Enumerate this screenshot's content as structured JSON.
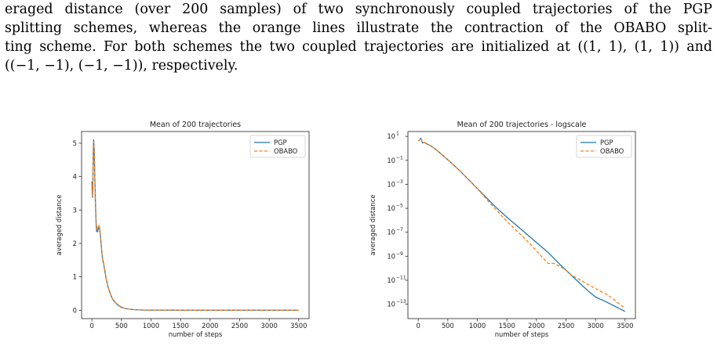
{
  "caption": {
    "lines": [
      "eraged distance (over 200 samples) of two synchronously coupled trajectories of the PGP",
      "splitting schemes, whereas the orange lines illustrate the contraction of the OBABO split-",
      "ting scheme. For both schemes the two coupled trajectories are initialized at ((1, 1), (1, 1)) and",
      "((−1, −1), (−1, −1)), respectively."
    ]
  },
  "colors": {
    "pgp": "#1f77b4",
    "obabo": "#ff7f0e"
  },
  "chart_data": [
    {
      "type": "line",
      "title": "Mean of 200 trajectories",
      "xlabel": "number of steps",
      "ylabel": "averaged distance",
      "xlim": [
        -175,
        3675
      ],
      "ylim": [
        -0.25,
        5.35
      ],
      "xticks": [
        0,
        500,
        1000,
        1500,
        2000,
        2500,
        3000,
        3500
      ],
      "yticks": [
        0,
        1,
        2,
        3,
        4,
        5
      ],
      "yscale": "linear",
      "legend_position": "top-right",
      "series": [
        {
          "name": "PGP",
          "color": "#1f77b4",
          "style": "solid",
          "x": [
            0,
            5,
            10,
            15,
            20,
            25,
            30,
            35,
            40,
            45,
            50,
            55,
            60,
            65,
            70,
            75,
            80,
            85,
            90,
            95,
            100,
            105,
            110,
            120,
            130,
            140,
            150,
            160,
            170,
            180,
            190,
            200,
            220,
            240,
            260,
            280,
            300,
            320,
            350,
            400,
            450,
            500,
            550,
            600,
            700,
            800,
            900,
            1000,
            1200,
            1500,
            2000,
            2500,
            3000,
            3500
          ],
          "y": [
            3.85,
            3.55,
            3.38,
            3.62,
            4.4,
            4.95,
            5.1,
            4.95,
            4.7,
            4.3,
            3.95,
            3.55,
            3.2,
            2.9,
            2.65,
            2.45,
            2.35,
            2.4,
            2.45,
            2.4,
            2.35,
            2.4,
            2.45,
            2.5,
            2.45,
            2.3,
            2.1,
            1.9,
            1.7,
            1.55,
            1.45,
            1.38,
            1.15,
            0.95,
            0.78,
            0.65,
            0.55,
            0.45,
            0.33,
            0.22,
            0.14,
            0.09,
            0.06,
            0.04,
            0.02,
            0.01,
            0.005,
            0.003,
            0.002,
            0.001,
            0.0005,
            0.0002,
            0.0001,
            0.0001
          ]
        },
        {
          "name": "OBABO",
          "color": "#ff7f0e",
          "style": "dashed",
          "x": [
            0,
            5,
            10,
            15,
            20,
            25,
            30,
            35,
            40,
            45,
            50,
            55,
            60,
            65,
            70,
            75,
            80,
            85,
            90,
            95,
            100,
            105,
            110,
            120,
            130,
            140,
            150,
            160,
            170,
            180,
            190,
            200,
            220,
            240,
            260,
            280,
            300,
            320,
            350,
            400,
            450,
            500,
            550,
            600,
            700,
            800,
            900,
            1000,
            1200,
            1500,
            2000,
            2500,
            3000,
            3500
          ],
          "y": [
            3.8,
            3.5,
            3.42,
            3.7,
            4.5,
            5.0,
            5.05,
            4.9,
            4.65,
            4.25,
            3.9,
            3.5,
            3.15,
            2.85,
            2.6,
            2.42,
            2.38,
            2.42,
            2.5,
            2.45,
            2.38,
            2.42,
            2.48,
            2.55,
            2.48,
            2.32,
            2.12,
            1.92,
            1.72,
            1.57,
            1.47,
            1.4,
            1.17,
            0.96,
            0.79,
            0.66,
            0.56,
            0.46,
            0.34,
            0.23,
            0.15,
            0.1,
            0.06,
            0.04,
            0.02,
            0.01,
            0.005,
            0.003,
            0.002,
            0.001,
            0.0005,
            0.0002,
            0.0001,
            0.0001
          ]
        }
      ]
    },
    {
      "type": "line",
      "title": "Mean of 200 trajectories - logscale",
      "xlabel": "number of steps",
      "ylabel": "averaged distance",
      "xlim": [
        -175,
        3675
      ],
      "ylim_log10": [
        -14.2,
        1.4
      ],
      "xticks": [
        0,
        500,
        1000,
        1500,
        2000,
        2500,
        3000,
        3500
      ],
      "yticks_log10": [
        1,
        -1,
        -3,
        -5,
        -7,
        -9,
        -11,
        -13
      ],
      "ytick_labels": [
        "10",
        "10",
        "10",
        "10",
        "10",
        "10",
        "10",
        "10"
      ],
      "ytick_exponents": [
        "1",
        "−1",
        "−3",
        "−5",
        "−7",
        "−9",
        "−11",
        "−13"
      ],
      "yscale": "log",
      "legend_position": "top-right",
      "series": [
        {
          "name": "PGP",
          "color": "#1f77b4",
          "style": "solid",
          "x": [
            0,
            25,
            40,
            55,
            70,
            100,
            150,
            200,
            300,
            500,
            700,
            1000,
            1300,
            1500,
            1800,
            2000,
            2200,
            2400,
            2550,
            2700,
            2900,
            3000,
            3200,
            3500
          ],
          "log10y": [
            0.6,
            0.7,
            0.85,
            0.7,
            0.45,
            0.5,
            0.35,
            0.25,
            -0.1,
            -0.95,
            -1.85,
            -3.35,
            -4.85,
            -5.75,
            -7.0,
            -7.85,
            -8.7,
            -9.7,
            -10.4,
            -11.1,
            -12.0,
            -12.4,
            -12.85,
            -13.6
          ]
        },
        {
          "name": "OBABO",
          "color": "#ff7f0e",
          "style": "dashed",
          "x": [
            0,
            25,
            40,
            55,
            70,
            100,
            150,
            200,
            300,
            500,
            700,
            1000,
            1200,
            1500,
            1800,
            2000,
            2100,
            2200,
            2300,
            2400,
            2500,
            2600,
            2800,
            3000,
            3200,
            3500
          ],
          "log10y": [
            0.6,
            0.7,
            0.85,
            0.7,
            0.45,
            0.5,
            0.35,
            0.25,
            -0.1,
            -0.95,
            -1.85,
            -3.35,
            -4.5,
            -6.1,
            -7.5,
            -8.55,
            -9.1,
            -9.6,
            -9.6,
            -9.85,
            -10.15,
            -10.6,
            -11.15,
            -11.7,
            -12.2,
            -13.35
          ]
        }
      ]
    }
  ]
}
